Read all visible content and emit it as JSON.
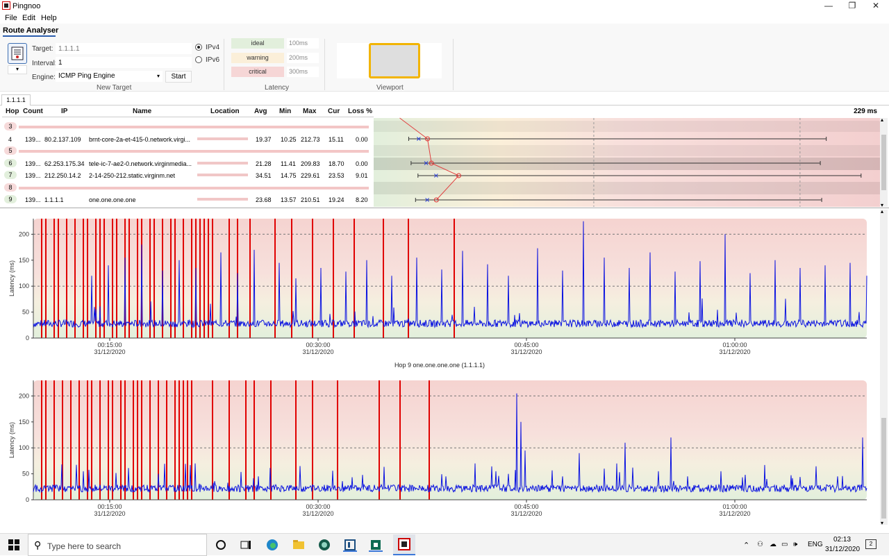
{
  "window": {
    "title": "Pingnoo",
    "minimize": "—",
    "maximize": "❐",
    "close": "✕"
  },
  "menu": [
    "File",
    "Edit",
    "Help"
  ],
  "ribbon": {
    "tab": "Route Analyser",
    "new_target": {
      "target_label": "Target:",
      "target_placeholder": "1.1.1.1",
      "interval_label": "Interval:",
      "interval_value": "1",
      "engine_label": "Engine:",
      "engine_value": "ICMP Ping Engine",
      "start_label": "Start",
      "ipv4_label": "IPv4",
      "ipv6_label": "IPv6",
      "ipv4_selected": true,
      "group_label": "New Target"
    },
    "latency": {
      "ideal_label": "ideal",
      "ideal_value": "100ms",
      "ideal_color": "#e2efdc",
      "warning_label": "warning",
      "warning_value": "200ms",
      "warning_color": "#fbefd9",
      "critical_label": "critical",
      "critical_value": "300ms",
      "critical_color": "#f6d6d6",
      "group_label": "Latency"
    },
    "viewport": {
      "group_label": "Viewport"
    }
  },
  "tabs": [
    "1.1.1.1"
  ],
  "table": {
    "headers": [
      "Hop",
      "Count",
      "IP",
      "Name",
      "Location",
      "Avg",
      "Min",
      "Max",
      "Cur",
      "Loss %"
    ],
    "rows": [
      {
        "hop": "3",
        "missing": true
      },
      {
        "hop": "4",
        "count": "139...",
        "ip": "80.2.137.109",
        "name": "brnt-core-2a-et-415-0.network.virgi...",
        "avg": "19.37",
        "min": "10.25",
        "max": "212.73",
        "cur": "15.11",
        "loss": "0.00"
      },
      {
        "hop": "5",
        "missing": true
      },
      {
        "hop": "6",
        "count": "139...",
        "ip": "62.253.175.34",
        "name": "tele-ic-7-ae2-0.network.virginmedia...",
        "avg": "21.28",
        "min": "11.41",
        "max": "209.83",
        "cur": "18.70",
        "loss": "0.00"
      },
      {
        "hop": "7",
        "count": "139...",
        "ip": "212.250.14.2",
        "name": "2-14-250-212.static.virginm.net",
        "avg": "34.51",
        "min": "14.75",
        "max": "229.61",
        "cur": "23.53",
        "loss": "9.01"
      },
      {
        "hop": "8",
        "missing": true
      },
      {
        "hop": "9",
        "count": "139...",
        "ip": "1.1.1.1",
        "name": "one.one.one.one",
        "avg": "23.68",
        "min": "13.57",
        "max": "210.51",
        "cur": "19.24",
        "loss": "8.20"
      }
    ]
  },
  "route_graph": {
    "scale_label": "229 ms",
    "max_ms": 229,
    "hops": [
      {
        "hop": "4",
        "min": 10.25,
        "avg": 19.37,
        "max": 212.73,
        "cur": 15.11
      },
      {
        "hop": "6",
        "min": 11.41,
        "avg": 21.28,
        "max": 209.83,
        "cur": 18.7
      },
      {
        "hop": "7",
        "min": 14.75,
        "avg": 34.51,
        "max": 229.61,
        "cur": 23.53
      },
      {
        "hop": "9",
        "min": 13.57,
        "avg": 23.68,
        "max": 210.51,
        "cur": 19.24
      }
    ]
  },
  "chart_data": [
    {
      "type": "line",
      "title": "",
      "ylabel": "Latency (ms)",
      "ylim": [
        0,
        230
      ],
      "yticks": [
        0,
        50,
        100,
        150,
        200
      ],
      "xticks": [
        {
          "time": "00:15:00",
          "date": "31/12/2020"
        },
        {
          "time": "00:30:00",
          "date": "31/12/2020"
        },
        {
          "time": "00:45:00",
          "date": "31/12/2020"
        },
        {
          "time": "01:00:00",
          "date": "31/12/2020"
        }
      ],
      "baseline_ms": 28,
      "spikes": [
        [
          14,
          120
        ],
        [
          18,
          140
        ],
        [
          22,
          155
        ],
        [
          26,
          180
        ],
        [
          31,
          130
        ],
        [
          35,
          150
        ],
        [
          39,
          135
        ],
        [
          45,
          165
        ],
        [
          49,
          125
        ],
        [
          53,
          170
        ],
        [
          59,
          145
        ],
        [
          63,
          115
        ],
        [
          69,
          135
        ],
        [
          75,
          128
        ],
        [
          80,
          150
        ],
        [
          86,
          120
        ],
        [
          92,
          155
        ],
        [
          98,
          132
        ],
        [
          103,
          168
        ],
        [
          109,
          142
        ],
        [
          114,
          120
        ],
        [
          121,
          173
        ],
        [
          127,
          130
        ],
        [
          132,
          225
        ],
        [
          137,
          155
        ],
        [
          143,
          135
        ],
        [
          148,
          165
        ],
        [
          154,
          128
        ],
        [
          160,
          148
        ],
        [
          166,
          200
        ],
        [
          172,
          125
        ],
        [
          178,
          150
        ],
        [
          184,
          135
        ],
        [
          190,
          140
        ],
        [
          196,
          145
        ],
        [
          200,
          120
        ]
      ],
      "loss_markers": [
        2,
        3,
        5,
        6,
        8,
        10,
        12,
        13,
        15,
        16,
        17,
        19,
        20,
        22,
        23,
        25,
        26,
        28,
        29,
        31,
        33,
        34,
        36,
        38,
        39,
        40,
        41,
        42,
        43,
        47,
        49,
        52,
        58,
        62,
        67,
        72,
        77,
        84,
        90,
        101
      ]
    },
    {
      "type": "line",
      "title": "Hop 9 one.one.one.one (1.1.1.1)",
      "ylabel": "Latency (ms)",
      "ylim": [
        0,
        230
      ],
      "yticks": [
        0,
        50,
        100,
        150,
        200
      ],
      "xticks": [
        {
          "time": "00:15:00",
          "date": "31/12/2020"
        },
        {
          "time": "00:30:00",
          "date": "31/12/2020"
        },
        {
          "time": "00:45:00",
          "date": "31/12/2020"
        },
        {
          "time": "01:00:00",
          "date": "31/12/2020"
        }
      ],
      "baseline_ms": 22,
      "spikes": [
        [
          12,
          55
        ],
        [
          30,
          50
        ],
        [
          54,
          45
        ],
        [
          64,
          65
        ],
        [
          79,
          48
        ],
        [
          99,
          45
        ],
        [
          106,
          70
        ],
        [
          111,
          55
        ],
        [
          114,
          50
        ],
        [
          116,
          205
        ],
        [
          117,
          150
        ],
        [
          118,
          95
        ],
        [
          127,
          45
        ],
        [
          131,
          90
        ],
        [
          137,
          60
        ],
        [
          140,
          70
        ],
        [
          142,
          110
        ],
        [
          150,
          55
        ],
        [
          153,
          120
        ],
        [
          157,
          45
        ],
        [
          165,
          55
        ],
        [
          176,
          40
        ],
        [
          193,
          45
        ],
        [
          199,
          120
        ]
      ],
      "loss_markers": [
        2,
        3,
        5,
        7,
        9,
        11,
        13,
        14,
        16,
        18,
        19,
        21,
        22,
        24,
        25,
        26,
        28,
        30,
        32,
        34,
        35,
        36,
        37,
        38,
        43,
        47,
        51,
        53,
        57,
        63,
        67,
        73,
        83,
        88,
        95
      ]
    }
  ],
  "taskbar": {
    "search_placeholder": "Type here to search",
    "lang": "ENG",
    "time": "02:13",
    "date": "31/12/2020",
    "notification_count": "2"
  }
}
